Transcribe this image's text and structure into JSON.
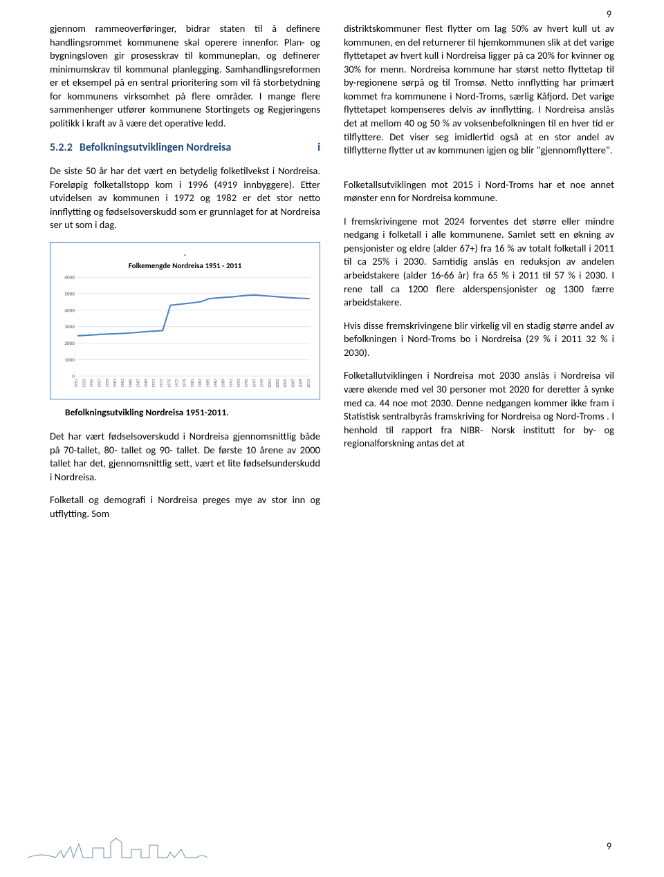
{
  "page_number_top": "9",
  "page_number_bottom": "9",
  "left_col": {
    "p1": "gjennom rammeoverføringer, bidrar staten til å definere handlingsrommet kommunene skal operere innenfor. Plan- og bygningsloven gir prosesskrav til kommuneplan, og definerer minimumskrav til kommunal planlegging. Samhandlingsreformen er et eksempel på en sentral prioritering som vil få storbetydning for kommunens virksomhet på flere områder. I mange flere sammenhenger utfører kommunene Stortingets og Regjeringens politikk i kraft av å være det operative ledd.",
    "section_num": "5.2.2",
    "section_title": "Befolkningsutviklingen Nordreisa",
    "section_suffix": "i",
    "p2": "De siste 50 år har det vært en betydelig folketilvekst i Nordreisa. Foreløpig folketallstopp kom i 1996 (4919 innbyggere). Etter utvidelsen av kommunen i 1972 og 1982 er det stor netto innflytting og fødselsoverskudd som er grunnlaget for at Nordreisa ser ut som i dag.",
    "chart": {
      "type": "line",
      "title_above_dot": ".",
      "title": "Folkemengde Nordreisa 1951 - 2011",
      "border_color": "#4f81bd",
      "grid_color": "#d0d7e5",
      "line_color": "#4f81bd",
      "line_width": 2,
      "background_color": "#ffffff",
      "y_ticks": [
        0,
        1000,
        2000,
        3000,
        4000,
        5000,
        6000
      ],
      "y_label_fontsize": 7,
      "x_label_fontsize": 6,
      "years": [
        1951,
        1953,
        1955,
        1957,
        1959,
        1961,
        1963,
        1965,
        1967,
        1969,
        1971,
        1973,
        1975,
        1977,
        1979,
        1981,
        1983,
        1985,
        1987,
        1989,
        1991,
        1993,
        1995,
        1997,
        1999,
        2001,
        2003,
        2005,
        2007,
        2009,
        2011
      ],
      "values": [
        2450,
        2470,
        2500,
        2530,
        2550,
        2570,
        2590,
        2620,
        2660,
        2700,
        2730,
        2760,
        4300,
        4350,
        4400,
        4450,
        4520,
        4700,
        4740,
        4780,
        4810,
        4860,
        4900,
        4919,
        4880,
        4850,
        4810,
        4770,
        4740,
        4720,
        4700
      ],
      "ylim": [
        0,
        6000
      ]
    },
    "chart_caption": "Befolkningsutvikling Nordreisa 1951-2011.",
    "p3": "Det har vært fødselsoverskudd i Nordreisa gjennomsnittlig både på 70-tallet, 80- tallet og 90- tallet. De første 10 årene av 2000 tallet har det, gjennomsnittlig sett, vært et lite fødselsunderskudd i Nordreisa.",
    "p4": "Folketall og demografi i Nordreisa preges mye av stor inn og utflytting. Som"
  },
  "right_col": {
    "p1": "distriktskommuner flest flytter om lag 50% av hvert kull ut av kommunen, en del returnerer til hjemkommunen slik at det varige flyttetapet av hvert kull i Nordreisa ligger på ca 20% for kvinner og 30% for menn. Nordreisa kommune har størst netto flyttetap til by-regionene sørpå og til Tromsø. Netto innflytting har primært kommet fra kommunene i Nord-Troms, særlig Kåfjord. Det varige flyttetapet kompenseres delvis av innflytting. I Nordreisa anslås det at mellom 40 og 50 % av voksenbefolkningen til en hver tid er tilflyttere. Det viser seg imidlertid også at en stor andel av tilflytterne flytter ut av kommunen igjen og blir \"gjennomflyttere\".",
    "p2": "Folketallsutviklingen mot 2015 i Nord-Troms har et noe annet mønster enn for Nordreisa kommune.",
    "p3": "I fremskrivingene mot 2024 forventes det større eller mindre nedgang i folketall i alle kommunene. Samlet sett en økning av pensjonister og eldre (alder 67+) fra 16 % av totalt folketall i 2011 til ca 25% i 2030. Samtidig anslås en reduksjon av andelen arbeidstakere (alder 16-66 år) fra 65 % i 2011 til 57 % i 2030. I rene tall ca 1200 flere alderspensjonister og 1300 færre arbeidstakere.",
    "p4": "Hvis disse fremskrivingene blir virkelig vil en stadig større andel av befolkningen i Nord-Troms bo i Nordreisa (29 % i 2011 32 % i 2030).",
    "p5": "Folketallutviklingen i Nordreisa mot 2030 anslås i Nordreisa vil være økende med vel 30 personer mot 2020 for deretter å synke med ca. 44 noe mot 2030. Denne nedgangen kommer ikke fram i Statistisk sentralbyrås framskriving for Nordreisa og Nord-Troms . I henhold til rapport fra NIBR- Norsk institutt for by- og regionalforskning antas det at"
  }
}
